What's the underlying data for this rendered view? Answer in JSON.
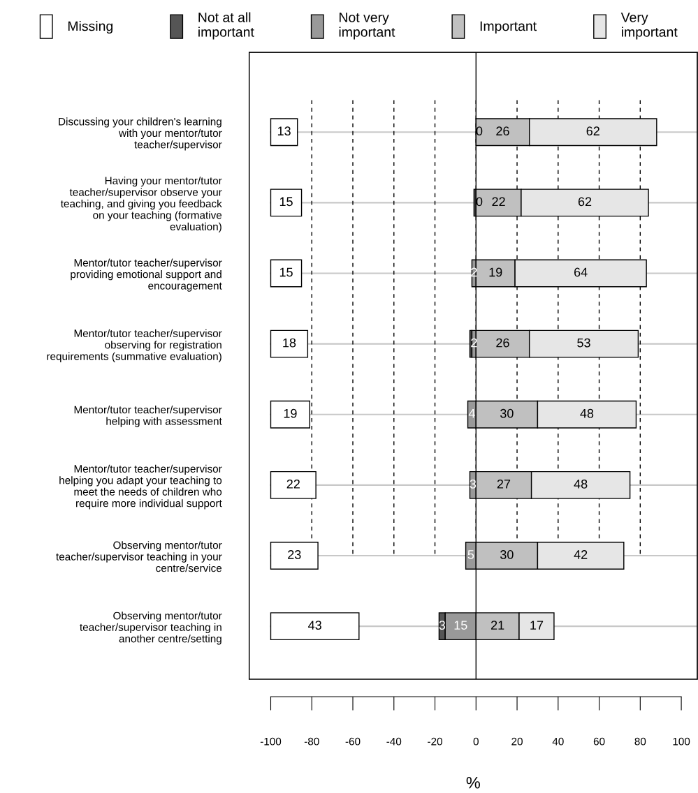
{
  "chart_data": {
    "type": "bar",
    "orientation": "horizontal",
    "categories": [
      "Discussing your children's learning\nwith your mentor/tutor\nteacher/supervisor",
      "Having your mentor/tutor\nteacher/supervisor observe your\nteaching, and giving you feedback\non your teaching (formative\nevaluation)",
      "Mentor/tutor teacher/supervisor\nproviding emotional support and\nencouragement",
      "Mentor/tutor teacher/supervisor\nobserving for registration\nrequirements (summative evaluation)",
      "Mentor/tutor teacher/supervisor\nhelping with assessment",
      "Mentor/tutor teacher/supervisor\nhelping you adapt your teaching to\nmeet the needs of children who\nrequire more individual support",
      "Observing mentor/tutor\nteacher/supervisor teaching in your\ncentre/service",
      "Observing mentor/tutor\nteacher/supervisor teaching in\nanother centre/setting"
    ],
    "series": [
      {
        "name": "Missing",
        "color": "#ffffff",
        "base": [
          -100,
          -100,
          -100,
          -100,
          -100,
          -100,
          -100,
          -100
        ],
        "values": [
          13,
          15,
          15,
          18,
          19,
          22,
          23,
          43
        ],
        "value_labels": [
          "13",
          "15",
          "15",
          "18",
          "19",
          "22",
          "23",
          "43"
        ]
      },
      {
        "name": "Not at all\nimportant",
        "color": "#555555",
        "base": [
          null,
          -1,
          null,
          -3,
          null,
          null,
          null,
          -18
        ],
        "values": [
          0,
          1,
          0,
          1,
          0,
          0,
          0,
          3
        ],
        "value_labels": [
          null,
          null,
          null,
          null,
          null,
          null,
          null,
          "3"
        ]
      },
      {
        "name": "Not very\nimportant",
        "color": "#999999",
        "base": [
          null,
          null,
          -2,
          -2,
          -4,
          -3,
          -5,
          -15
        ],
        "values": [
          0,
          0,
          2,
          2,
          4,
          3,
          5,
          15
        ],
        "value_labels": [
          "0",
          "0",
          "2",
          "2",
          "4",
          "3",
          "5",
          "15"
        ]
      },
      {
        "name": "Important",
        "color": "#c0c0c0",
        "base": [
          0,
          0,
          0,
          0,
          0,
          0,
          0,
          0
        ],
        "values": [
          26,
          22,
          19,
          26,
          30,
          27,
          30,
          21
        ],
        "value_labels": [
          "26",
          "22",
          "19",
          "26",
          "30",
          "27",
          "30",
          "21"
        ]
      },
      {
        "name": "Very\nimportant",
        "color": "#e6e6e6",
        "base": [
          26,
          22,
          19,
          26,
          30,
          27,
          30,
          21
        ],
        "values": [
          62,
          62,
          64,
          53,
          48,
          48,
          42,
          17
        ],
        "value_labels": [
          "62",
          "62",
          "64",
          "53",
          "48",
          "48",
          "42",
          "17"
        ]
      }
    ],
    "xlim": [
      -110.5,
      107.8
    ],
    "xticks": [
      -100,
      -80,
      -60,
      -40,
      -20,
      0,
      20,
      40,
      60,
      80,
      100
    ],
    "xlabel": "%",
    "grid": true,
    "legend": "top",
    "ref_lines": [
      {
        "axis": "x",
        "value": 0,
        "color": "#000000",
        "line_style": "solid"
      }
    ]
  }
}
